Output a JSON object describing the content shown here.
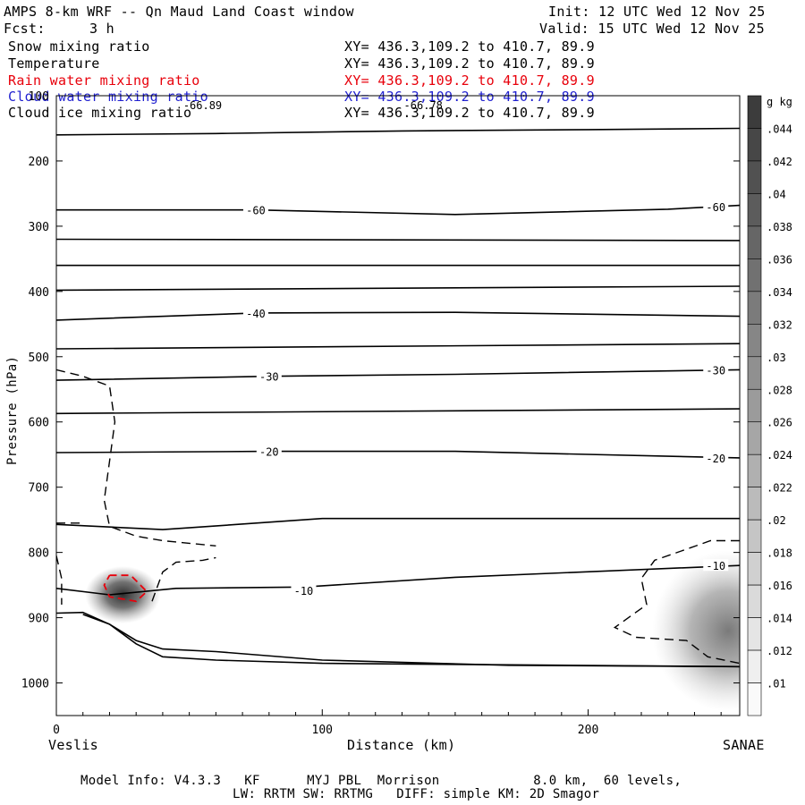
{
  "header": {
    "title": "AMPS 8-km WRF -- Qn Maud Land Coast window",
    "init": "Init: 12 UTC Wed 12 Nov 25",
    "fcst_label": "Fcst:",
    "fcst_value": "3 h",
    "valid": "Valid: 15 UTC Wed 12 Nov 25"
  },
  "fields": [
    {
      "name": "Snow mixing ratio",
      "xy": "XY= 436.3,109.2 to 410.7, 89.9",
      "color": "#000000"
    },
    {
      "name": "Temperature",
      "xy": "XY= 436.3,109.2 to 410.7, 89.9",
      "color": "#000000"
    },
    {
      "name": "Rain water mixing ratio",
      "xy": "XY= 436.3,109.2 to 410.7, 89.9",
      "color": "#e8000b"
    },
    {
      "name": "Cloud water mixing ratio",
      "xy": "XY= 436.3,109.2 to 410.7, 89.9",
      "color": "#1f1fd0"
    },
    {
      "name": "Cloud ice mixing ratio",
      "xy": "XY= 436.3,109.2 to 410.7, 89.9",
      "color": "#000000"
    }
  ],
  "chart_data": {
    "type": "cross-section contour",
    "xlabel": "Distance (km)",
    "ylabel": "Pressure (hPa)",
    "xlim": [
      0,
      257
    ],
    "ylim": [
      1050,
      100
    ],
    "x_ticks": [
      0,
      100,
      200
    ],
    "y_ticks": [
      100,
      200,
      300,
      400,
      500,
      600,
      700,
      800,
      900,
      1000
    ],
    "left_endpoint": "Veslis",
    "right_endpoint": "SANAE",
    "top_annotations": [
      {
        "label": "-66.89",
        "x": 55
      },
      {
        "label": "-66.78",
        "x": 138
      }
    ],
    "temperature_contour_labels": [
      {
        "label": "-60",
        "x": 75,
        "p": 275
      },
      {
        "label": "-60",
        "x": 248,
        "p": 270
      },
      {
        "label": "-40",
        "x": 75,
        "p": 433
      },
      {
        "label": "-30",
        "x": 80,
        "p": 530
      },
      {
        "label": "-30",
        "x": 248,
        "p": 520
      },
      {
        "label": "-20",
        "x": 80,
        "p": 645
      },
      {
        "label": "-20",
        "x": 248,
        "p": 655
      },
      {
        "label": "-10",
        "x": 93,
        "p": 858
      },
      {
        "label": "-10",
        "x": 248,
        "p": 820
      }
    ],
    "temperature_contours": [
      [
        [
          0,
          160
        ],
        [
          60,
          158
        ],
        [
          130,
          154
        ],
        [
          200,
          152
        ],
        [
          257,
          150
        ]
      ],
      [
        [
          0,
          275
        ],
        [
          75,
          275
        ],
        [
          150,
          282
        ],
        [
          230,
          274
        ],
        [
          257,
          268
        ]
      ],
      [
        [
          0,
          320
        ],
        [
          257,
          322
        ]
      ],
      [
        [
          0,
          360
        ],
        [
          257,
          360
        ]
      ],
      [
        [
          0,
          398
        ],
        [
          257,
          392
        ]
      ],
      [
        [
          0,
          444
        ],
        [
          75,
          433
        ],
        [
          150,
          432
        ],
        [
          257,
          438
        ]
      ],
      [
        [
          0,
          488
        ],
        [
          257,
          480
        ]
      ],
      [
        [
          0,
          536
        ],
        [
          80,
          530
        ],
        [
          150,
          527
        ],
        [
          257,
          520
        ]
      ],
      [
        [
          0,
          587
        ],
        [
          257,
          580
        ]
      ],
      [
        [
          0,
          647
        ],
        [
          80,
          645
        ],
        [
          150,
          645
        ],
        [
          257,
          655
        ]
      ],
      [
        [
          0,
          757
        ],
        [
          40,
          765
        ],
        [
          100,
          748
        ],
        [
          257,
          748
        ]
      ],
      [
        [
          0,
          855
        ],
        [
          20,
          865
        ],
        [
          45,
          855
        ],
        [
          93,
          853
        ],
        [
          150,
          838
        ],
        [
          257,
          820
        ]
      ],
      [
        [
          0,
          893
        ],
        [
          10,
          892
        ],
        [
          20,
          910
        ],
        [
          30,
          935
        ],
        [
          40,
          948
        ],
        [
          60,
          952
        ],
        [
          100,
          965
        ],
        [
          170,
          973
        ],
        [
          257,
          975
        ]
      ],
      [
        [
          10,
          895
        ],
        [
          20,
          910
        ],
        [
          30,
          940
        ],
        [
          40,
          960
        ],
        [
          60,
          965
        ],
        [
          100,
          970
        ],
        [
          257,
          975
        ]
      ]
    ],
    "dashed_contours": [
      [
        [
          0,
          520
        ],
        [
          10,
          530
        ],
        [
          20,
          545
        ],
        [
          22,
          600
        ],
        [
          20,
          660
        ],
        [
          18,
          720
        ],
        [
          20,
          760
        ],
        [
          30,
          775
        ],
        [
          40,
          782
        ],
        [
          60,
          790
        ]
      ],
      [
        [
          0,
          755
        ],
        [
          10,
          755
        ]
      ],
      [
        [
          36,
          875
        ],
        [
          40,
          830
        ],
        [
          45,
          815
        ],
        [
          55,
          812
        ],
        [
          60,
          808
        ]
      ],
      [
        [
          0,
          805
        ],
        [
          2,
          840
        ],
        [
          2,
          880
        ]
      ],
      [
        [
          257,
          782
        ],
        [
          246,
          782
        ],
        [
          237,
          795
        ],
        [
          225,
          812
        ],
        [
          220,
          840
        ],
        [
          222,
          880
        ],
        [
          210,
          915
        ],
        [
          218,
          930
        ],
        [
          237,
          935
        ],
        [
          245,
          960
        ],
        [
          257,
          970
        ]
      ]
    ],
    "rain_contour": [
      [
        20,
        835
      ],
      [
        28,
        835
      ],
      [
        34,
        860
      ],
      [
        30,
        875
      ],
      [
        20,
        868
      ],
      [
        18,
        850
      ],
      [
        20,
        835
      ]
    ],
    "shaded_regions": [
      {
        "x": 25,
        "p": 865,
        "peak_g_per_kg": 0.04
      },
      {
        "x": 250,
        "p": 920,
        "peak_g_per_kg": 0.022
      }
    ],
    "colorbar": {
      "unit": "g kg",
      "unit_exponent": "-1",
      "labels": [
        ".044",
        ".042",
        ".04",
        ".038",
        ".036",
        ".034",
        ".032",
        ".03",
        ".028",
        ".026",
        ".024",
        ".022",
        ".02",
        ".018",
        ".016",
        ".014",
        ".012",
        ".01"
      ]
    }
  },
  "footer": {
    "line1": "Model Info: V4.3.3   KF      MYJ PBL  Morrison            8.0 km,  60 levels,",
    "line2": "LW: RRTM SW: RRTMG   DIFF: simple KM: 2D Smagor"
  }
}
